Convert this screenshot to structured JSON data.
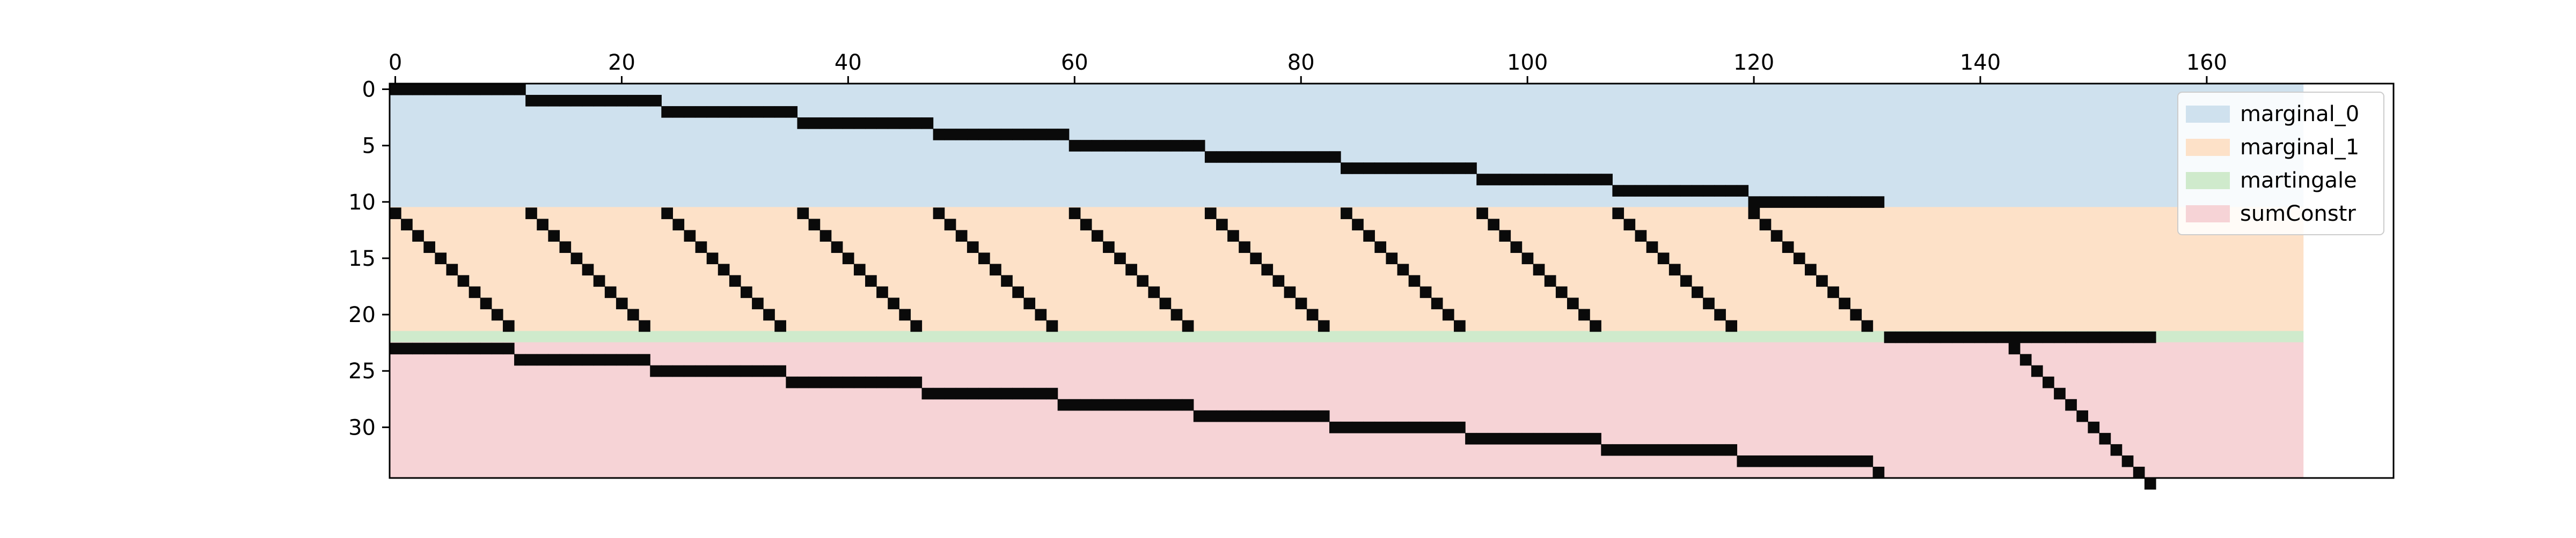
{
  "chart_data": {
    "type": "heatmap",
    "title": "",
    "xlabel": "",
    "ylabel": "",
    "x_axis_position": "top",
    "xlim": [
      -0.5,
      176.5
    ],
    "ylim": [
      34.5,
      -0.5
    ],
    "x_ticks": [
      0,
      20,
      40,
      60,
      80,
      100,
      120,
      140,
      160
    ],
    "x_tick_labels": [
      "0",
      "20",
      "40",
      "60",
      "80",
      "100",
      "120",
      "140",
      "160"
    ],
    "y_ticks": [
      0,
      5,
      10,
      15,
      20,
      25,
      30
    ],
    "y_tick_labels": [
      "0",
      "5",
      "10",
      "15",
      "20",
      "25",
      "30"
    ],
    "grid": false,
    "legend_position": "upper-right",
    "regions": [
      {
        "name": "marginal_0",
        "row_start": -0.5,
        "row_end": 10.5,
        "col_start": -0.5,
        "col_end": 168.5,
        "color": "#cfe1ee"
      },
      {
        "name": "marginal_1",
        "row_start": 10.5,
        "row_end": 21.5,
        "col_start": -0.5,
        "col_end": 168.5,
        "color": "#fde1c8"
      },
      {
        "name": "martingale",
        "row_start": 21.5,
        "row_end": 22.5,
        "col_start": -0.5,
        "col_end": 168.5,
        "color": "#cfeacc"
      },
      {
        "name": "sumConstr",
        "row_start": 22.5,
        "row_end": 34.5,
        "col_start": -0.5,
        "col_end": 168.5,
        "color": "#f6d3d6"
      }
    ],
    "nonzero_pattern": {
      "block_size": 12,
      "num_blocks": 11,
      "marginal_0": "row i has nonzeros in columns 12*i .. 12*i+11, for i = 0..10",
      "marginal_1": "row 11+j has nonzeros in column 12*i+j, for i = 0..10, j = 0..10",
      "martingale": "row 22 has nonzeros in columns 144..167",
      "sumConstr": "row 23+i has nonzeros in columns 12*i .. 12*i+10 (except column 12*i+11) plus column 12*i+11 on row 24+i; rows 23..34 have nonzeros in column 132+r for r = 11..23"
    },
    "marker_color": "#0a0a0a"
  }
}
